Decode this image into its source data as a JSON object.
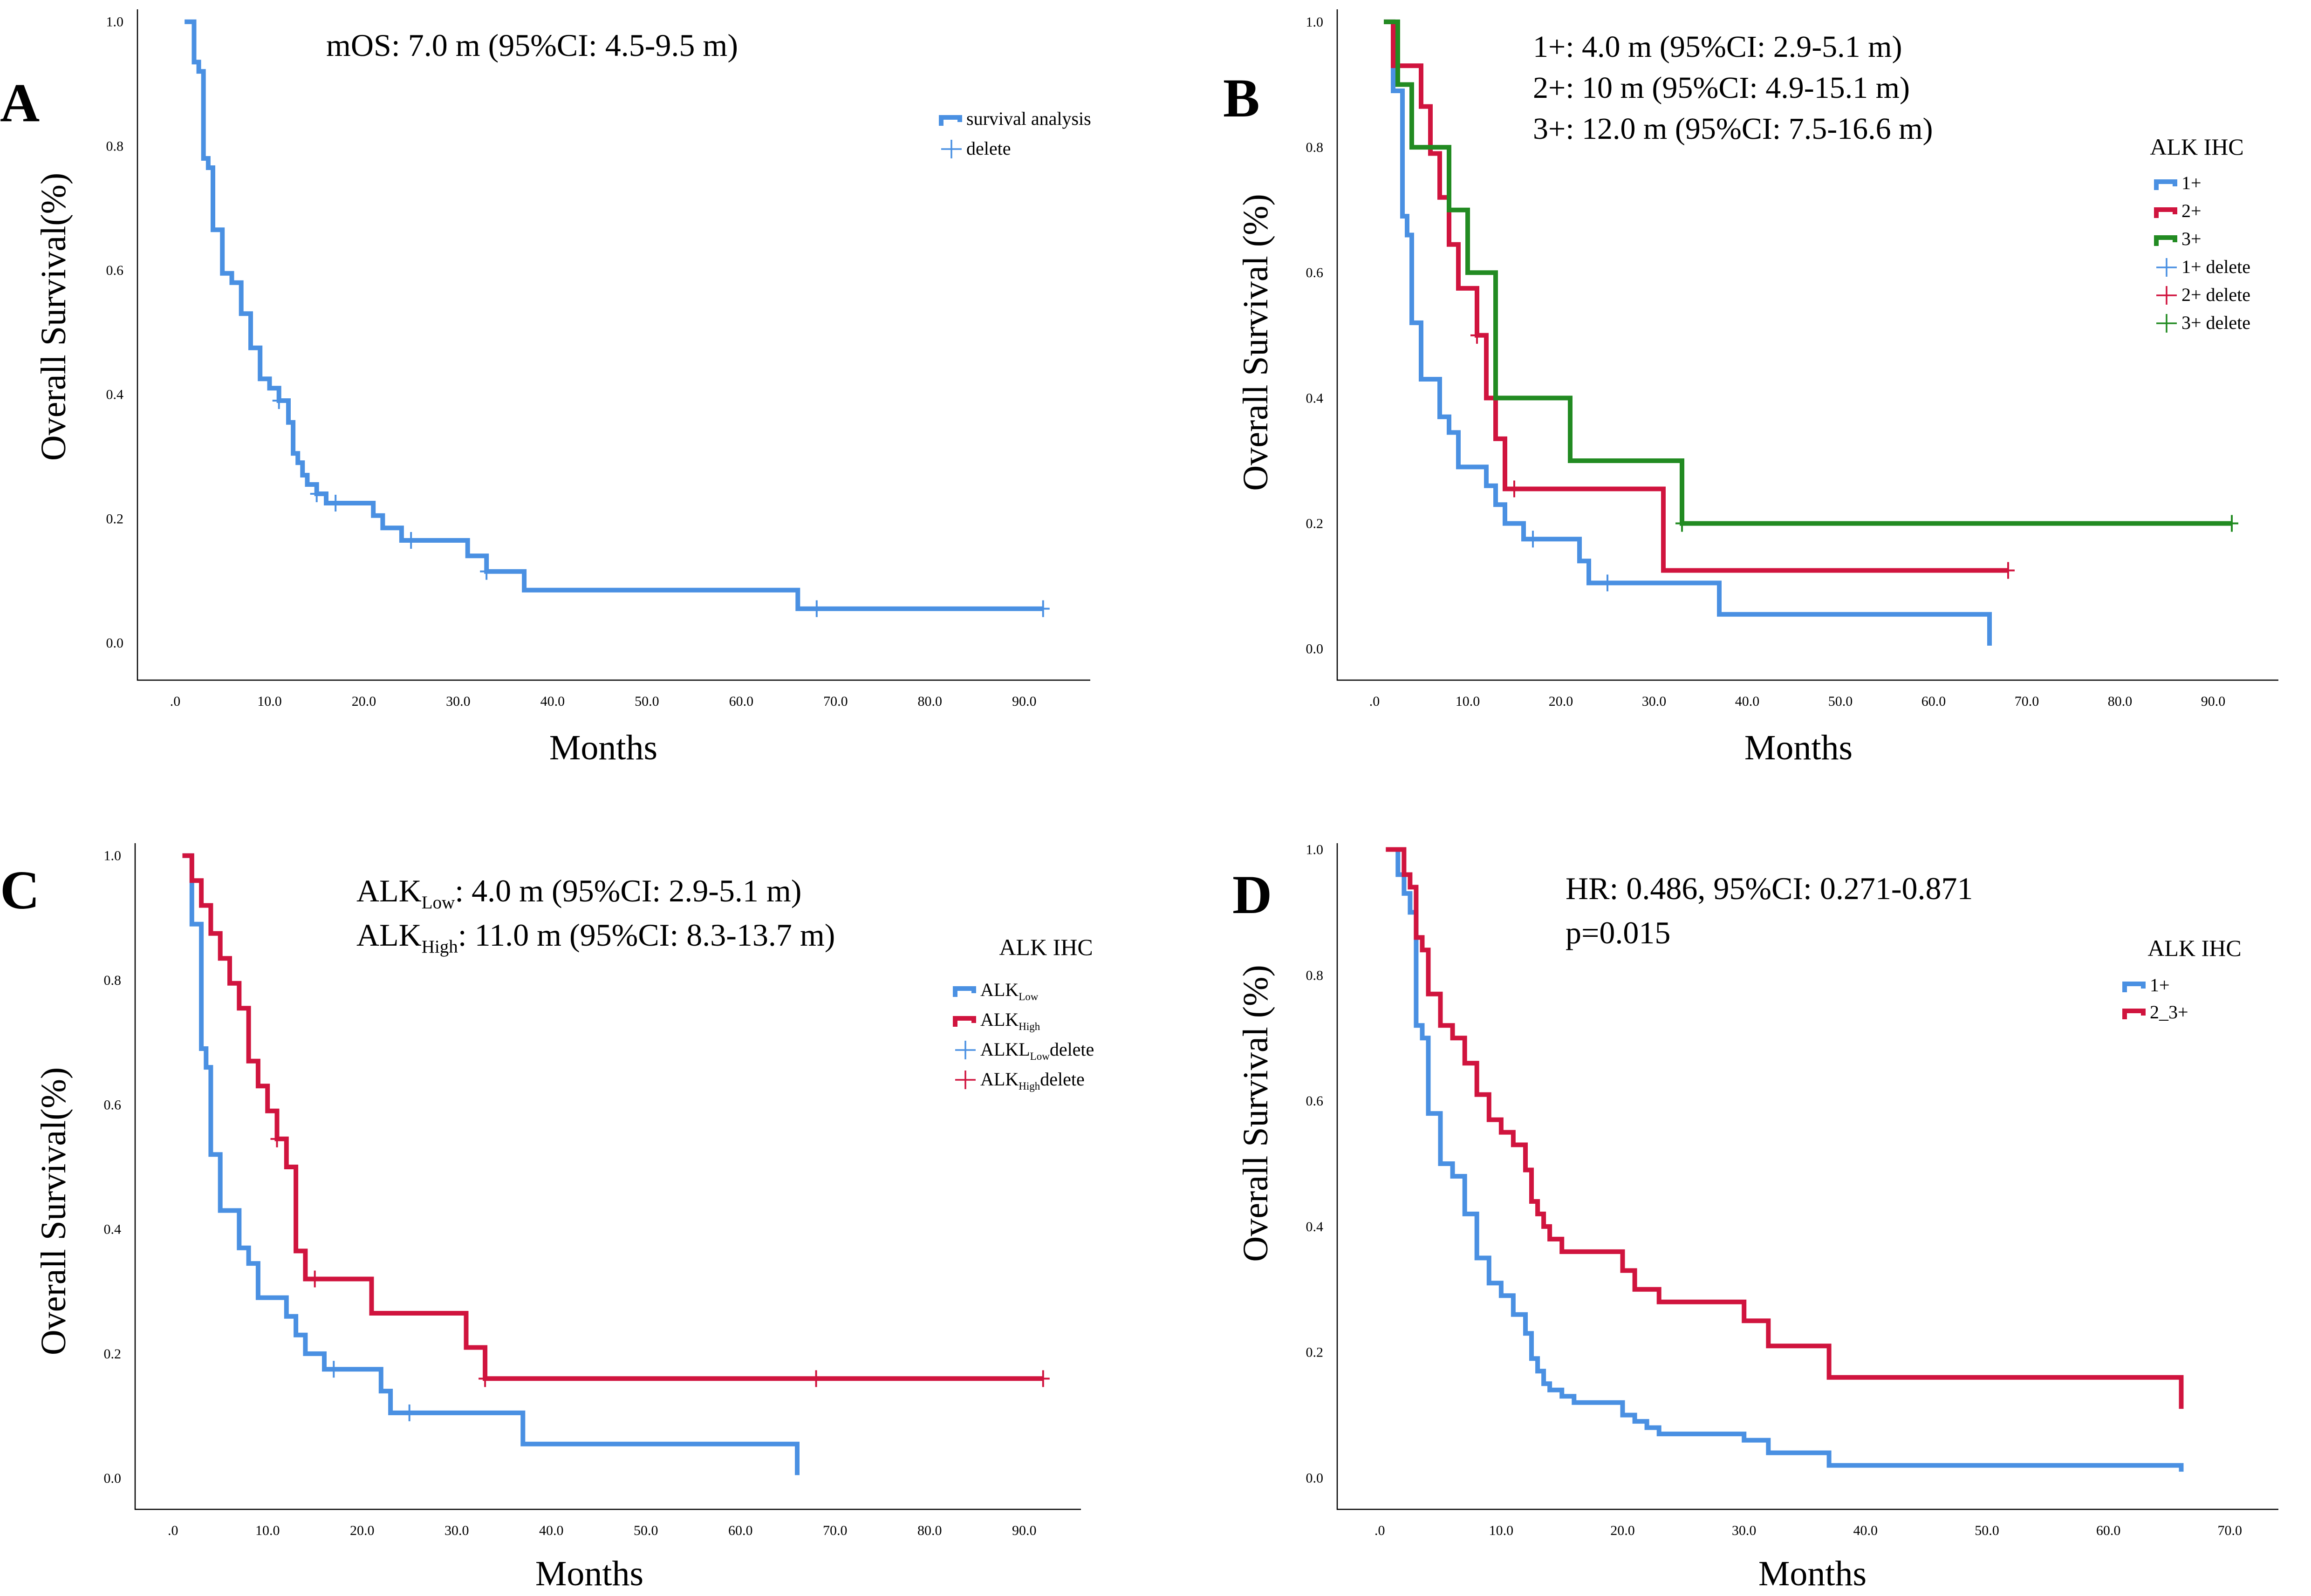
{
  "colors": {
    "blue": "#4A90E2",
    "red": "#D0143E",
    "green": "#228B22"
  },
  "chart_data": [
    {
      "type": "line",
      "panel": "A",
      "xlabel": "Months",
      "ylabel": "Overall Survival(%)",
      "x_ticks": [
        ".0",
        "10.0",
        "20.0",
        "30.0",
        "40.0",
        "50.0",
        "60.0",
        "70.0",
        "80.0",
        "90.0"
      ],
      "y_ticks": [
        "0.0",
        "0.2",
        "0.4",
        "0.6",
        "0.8",
        "1.0"
      ],
      "xlim": [
        -4,
        97
      ],
      "ylim": [
        -0.06,
        1.02
      ],
      "annotations": [
        {
          "parts": [
            {
              "t": "mOS: 7.0 m (95%CI: 4.5-9.5 m)"
            }
          ]
        }
      ],
      "legend": {
        "title": "",
        "items": [
          {
            "kind": "line",
            "color": "blue",
            "parts": [
              {
                "t": "survival analysis"
              }
            ]
          },
          {
            "kind": "censor",
            "color": "blue",
            "parts": [
              {
                "t": "delete"
              }
            ]
          }
        ]
      },
      "series": [
        {
          "name": "survival analysis",
          "color": "blue",
          "steps": [
            [
              1,
              1.0
            ],
            [
              2,
              0.935
            ],
            [
              2.5,
              0.92
            ],
            [
              3,
              0.78
            ],
            [
              3.5,
              0.765
            ],
            [
              4,
              0.665
            ],
            [
              5,
              0.595
            ],
            [
              6,
              0.58
            ],
            [
              7,
              0.53
            ],
            [
              8,
              0.475
            ],
            [
              9,
              0.425
            ],
            [
              10,
              0.41
            ],
            [
              11,
              0.39
            ],
            [
              12,
              0.355
            ],
            [
              12.5,
              0.305
            ],
            [
              13,
              0.29
            ],
            [
              13.5,
              0.27
            ],
            [
              14,
              0.255
            ],
            [
              15,
              0.24
            ],
            [
              16,
              0.225
            ],
            [
              21,
              0.205
            ],
            [
              22,
              0.185
            ],
            [
              24,
              0.165
            ],
            [
              31,
              0.14
            ],
            [
              33,
              0.115
            ],
            [
              37,
              0.085
            ],
            [
              66,
              0.055
            ],
            [
              92,
              0.055
            ]
          ],
          "censors": [
            [
              11,
              0.39
            ],
            [
              15,
              0.24
            ],
            [
              17,
              0.225
            ],
            [
              25,
              0.165
            ],
            [
              33,
              0.115
            ],
            [
              68,
              0.055
            ],
            [
              92,
              0.055
            ]
          ]
        }
      ]
    },
    {
      "type": "line",
      "panel": "B",
      "xlabel": "Months",
      "ylabel": "Overall Survival (%)",
      "x_ticks": [
        ".0",
        "10.0",
        "20.0",
        "30.0",
        "40.0",
        "50.0",
        "60.0",
        "70.0",
        "80.0",
        "90.0"
      ],
      "y_ticks": [
        "0.0",
        "0.2",
        "0.4",
        "0.6",
        "0.8",
        "1.0"
      ],
      "xlim": [
        -4,
        97
      ],
      "ylim": [
        -0.05,
        1.02
      ],
      "annotations": [
        {
          "parts": [
            {
              "t": "1+: 4.0 m (95%CI: 2.9-5.1 m)"
            }
          ]
        },
        {
          "parts": [
            {
              "t": "2+: 10 m (95%CI: 4.9-15.1 m)"
            }
          ]
        },
        {
          "parts": [
            {
              "t": "3+: 12.0 m (95%CI: 7.5-16.6 m)"
            }
          ]
        }
      ],
      "legend": {
        "title": "ALK IHC",
        "items": [
          {
            "kind": "line",
            "color": "blue",
            "parts": [
              {
                "t": "1+"
              }
            ]
          },
          {
            "kind": "line",
            "color": "red",
            "parts": [
              {
                "t": "2+"
              }
            ]
          },
          {
            "kind": "line",
            "color": "green",
            "parts": [
              {
                "t": "3+"
              }
            ]
          },
          {
            "kind": "censor",
            "color": "blue",
            "parts": [
              {
                "t": "1+ delete"
              }
            ]
          },
          {
            "kind": "censor",
            "color": "red",
            "parts": [
              {
                "t": "2+ delete"
              }
            ]
          },
          {
            "kind": "censor",
            "color": "green",
            "parts": [
              {
                "t": "3+ delete"
              }
            ]
          }
        ]
      },
      "series": [
        {
          "name": "1+",
          "color": "blue",
          "steps": [
            [
              1,
              1.0
            ],
            [
              2,
              0.89
            ],
            [
              3,
              0.69
            ],
            [
              3.5,
              0.66
            ],
            [
              4,
              0.52
            ],
            [
              5,
              0.43
            ],
            [
              7,
              0.37
            ],
            [
              8,
              0.345
            ],
            [
              9,
              0.29
            ],
            [
              12,
              0.26
            ],
            [
              13,
              0.23
            ],
            [
              14,
              0.2
            ],
            [
              16,
              0.175
            ],
            [
              22,
              0.14
            ],
            [
              23,
              0.105
            ],
            [
              37,
              0.055
            ],
            [
              66,
              0.005
            ]
          ],
          "censors": [
            [
              17,
              0.175
            ],
            [
              25,
              0.105
            ]
          ]
        },
        {
          "name": "2+",
          "color": "red",
          "steps": [
            [
              1,
              1.0
            ],
            [
              2,
              0.93
            ],
            [
              5,
              0.865
            ],
            [
              6,
              0.79
            ],
            [
              7,
              0.72
            ],
            [
              8,
              0.645
            ],
            [
              9,
              0.575
            ],
            [
              11,
              0.5
            ],
            [
              12,
              0.4
            ],
            [
              13,
              0.335
            ],
            [
              14,
              0.255
            ],
            [
              31,
              0.125
            ],
            [
              68,
              0.125
            ]
          ],
          "censors": [
            [
              11,
              0.5
            ],
            [
              15,
              0.255
            ],
            [
              68,
              0.125
            ]
          ]
        },
        {
          "name": "3+",
          "color": "green",
          "steps": [
            [
              1,
              1.0
            ],
            [
              2.5,
              0.9
            ],
            [
              4,
              0.8
            ],
            [
              8,
              0.7
            ],
            [
              10,
              0.6
            ],
            [
              13,
              0.4
            ],
            [
              21,
              0.3
            ],
            [
              33,
              0.2
            ],
            [
              92,
              0.2
            ]
          ],
          "censors": [
            [
              33,
              0.2
            ],
            [
              92,
              0.2
            ]
          ]
        }
      ]
    },
    {
      "type": "line",
      "panel": "C",
      "xlabel": "Months",
      "ylabel": "Overall Survival(%)",
      "x_ticks": [
        ".0",
        "10.0",
        "20.0",
        "30.0",
        "40.0",
        "50.0",
        "60.0",
        "70.0",
        "80.0",
        "90.0"
      ],
      "y_ticks": [
        "0.0",
        "0.2",
        "0.4",
        "0.6",
        "0.8",
        "1.0"
      ],
      "xlim": [
        -4,
        96
      ],
      "ylim": [
        -0.05,
        1.02
      ],
      "annotations": [
        {
          "parts": [
            {
              "t": "ALK"
            },
            {
              "t": "Low",
              "sub": true
            },
            {
              "t": ": 4.0 m (95%CI: 2.9-5.1 m)"
            }
          ]
        },
        {
          "parts": [
            {
              "t": "ALK"
            },
            {
              "t": "High",
              "sub": true
            },
            {
              "t": ": 11.0 m (95%CI: 8.3-13.7 m)"
            }
          ]
        }
      ],
      "legend": {
        "title": "ALK IHC",
        "items": [
          {
            "kind": "line",
            "color": "blue",
            "parts": [
              {
                "t": "ALK"
              },
              {
                "t": "Low",
                "sub": true
              }
            ]
          },
          {
            "kind": "line",
            "color": "red",
            "parts": [
              {
                "t": "ALK"
              },
              {
                "t": "High",
                "sub": true
              }
            ]
          },
          {
            "kind": "censor",
            "color": "blue",
            "parts": [
              {
                "t": "ALKL"
              },
              {
                "t": "Low",
                "sub": true
              },
              {
                "t": "delete"
              }
            ]
          },
          {
            "kind": "censor",
            "color": "red",
            "parts": [
              {
                "t": "ALK"
              },
              {
                "t": "High",
                "sub": true
              },
              {
                "t": "delete"
              }
            ]
          }
        ]
      },
      "series": [
        {
          "name": "ALK Low",
          "color": "blue",
          "steps": [
            [
              1,
              1.0
            ],
            [
              2,
              0.89
            ],
            [
              3,
              0.69
            ],
            [
              3.5,
              0.66
            ],
            [
              4,
              0.52
            ],
            [
              5,
              0.43
            ],
            [
              7,
              0.37
            ],
            [
              8,
              0.345
            ],
            [
              9,
              0.29
            ],
            [
              12,
              0.26
            ],
            [
              13,
              0.23
            ],
            [
              14,
              0.2
            ],
            [
              16,
              0.175
            ],
            [
              22,
              0.14
            ],
            [
              23,
              0.105
            ],
            [
              37,
              0.055
            ],
            [
              66,
              0.005
            ]
          ],
          "censors": [
            [
              17,
              0.175
            ],
            [
              25,
              0.105
            ]
          ]
        },
        {
          "name": "ALK High",
          "color": "red",
          "steps": [
            [
              1,
              1.0
            ],
            [
              2,
              0.96
            ],
            [
              3,
              0.92
            ],
            [
              4,
              0.875
            ],
            [
              5,
              0.835
            ],
            [
              6,
              0.795
            ],
            [
              7,
              0.755
            ],
            [
              8,
              0.67
            ],
            [
              9,
              0.63
            ],
            [
              10,
              0.59
            ],
            [
              11,
              0.545
            ],
            [
              12,
              0.5
            ],
            [
              13,
              0.365
            ],
            [
              14,
              0.32
            ],
            [
              21,
              0.265
            ],
            [
              31,
              0.21
            ],
            [
              33,
              0.16
            ],
            [
              92,
              0.16
            ]
          ],
          "censors": [
            [
              11,
              0.545
            ],
            [
              15,
              0.32
            ],
            [
              33,
              0.16
            ],
            [
              68,
              0.16
            ],
            [
              92,
              0.16
            ]
          ]
        }
      ]
    },
    {
      "type": "line",
      "panel": "D",
      "xlabel": "Months",
      "ylabel": "Overall Survival (%)",
      "x_ticks": [
        ".0",
        "10.0",
        "20.0",
        "30.0",
        "40.0",
        "50.0",
        "60.0",
        "70.0"
      ],
      "y_ticks": [
        "0.0",
        "0.2",
        "0.4",
        "0.6",
        "0.8",
        "1.0"
      ],
      "xlim": [
        -3.5,
        74
      ],
      "ylim": [
        -0.05,
        1.01
      ],
      "annotations": [
        {
          "parts": [
            {
              "t": "HR: 0.486, 95%CI: 0.271-0.871"
            }
          ]
        },
        {
          "parts": [
            {
              "t": "p=0.015"
            }
          ]
        }
      ],
      "legend": {
        "title": "ALK IHC",
        "items": [
          {
            "kind": "line",
            "color": "blue",
            "parts": [
              {
                "t": "1+"
              }
            ]
          },
          {
            "kind": "line",
            "color": "red",
            "parts": [
              {
                "t": "2_3+"
              }
            ]
          }
        ]
      },
      "series": [
        {
          "name": "1+",
          "color": "blue",
          "steps": [
            [
              1,
              1.0
            ],
            [
              1.5,
              0.96
            ],
            [
              2,
              0.93
            ],
            [
              2.5,
              0.9
            ],
            [
              3,
              0.72
            ],
            [
              3.5,
              0.7
            ],
            [
              4,
              0.58
            ],
            [
              5,
              0.5
            ],
            [
              6,
              0.48
            ],
            [
              7,
              0.42
            ],
            [
              8,
              0.35
            ],
            [
              9,
              0.31
            ],
            [
              10,
              0.29
            ],
            [
              11,
              0.26
            ],
            [
              12,
              0.23
            ],
            [
              12.5,
              0.19
            ],
            [
              13,
              0.17
            ],
            [
              13.5,
              0.15
            ],
            [
              14,
              0.14
            ],
            [
              15,
              0.13
            ],
            [
              16,
              0.12
            ],
            [
              20,
              0.1
            ],
            [
              21,
              0.09
            ],
            [
              22,
              0.08
            ],
            [
              23,
              0.07
            ],
            [
              30,
              0.06
            ],
            [
              32,
              0.04
            ],
            [
              37,
              0.02
            ],
            [
              66,
              0.01
            ]
          ],
          "censors": []
        },
        {
          "name": "2_3+",
          "color": "red",
          "steps": [
            [
              0.5,
              1.0
            ],
            [
              2,
              0.96
            ],
            [
              2.5,
              0.94
            ],
            [
              3,
              0.86
            ],
            [
              3.5,
              0.84
            ],
            [
              4,
              0.77
            ],
            [
              5,
              0.72
            ],
            [
              6,
              0.7
            ],
            [
              7,
              0.66
            ],
            [
              8,
              0.61
            ],
            [
              9,
              0.57
            ],
            [
              10,
              0.55
            ],
            [
              11,
              0.53
            ],
            [
              12,
              0.49
            ],
            [
              12.5,
              0.44
            ],
            [
              13,
              0.42
            ],
            [
              13.5,
              0.4
            ],
            [
              14,
              0.38
            ],
            [
              15,
              0.36
            ],
            [
              20,
              0.33
            ],
            [
              21,
              0.3
            ],
            [
              23,
              0.28
            ],
            [
              30,
              0.25
            ],
            [
              32,
              0.21
            ],
            [
              37,
              0.16
            ],
            [
              66,
              0.11
            ]
          ],
          "censors": []
        }
      ]
    }
  ]
}
